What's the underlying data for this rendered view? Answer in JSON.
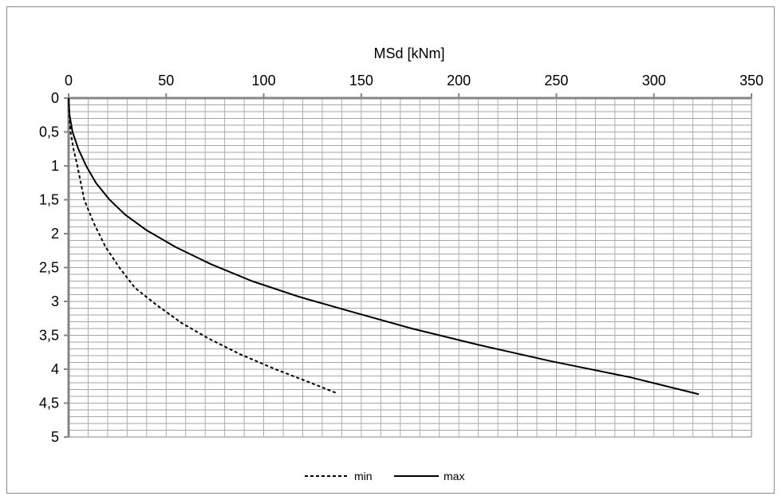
{
  "chart_data": {
    "type": "line",
    "xlabel": "MSd [kNm]",
    "ylabel": "",
    "xlim": [
      0,
      350
    ],
    "ylim": [
      0,
      5
    ],
    "y_reversed": true,
    "x_axis_position": "top",
    "x_ticks": [
      "0",
      "50",
      "100",
      "150",
      "200",
      "250",
      "300",
      "350"
    ],
    "y_ticks": [
      "0",
      "0,5",
      "1",
      "1,5",
      "2",
      "2,5",
      "3",
      "3,5",
      "4",
      "4,5",
      "5"
    ],
    "grid": true,
    "legend_position": "bottom",
    "series": [
      {
        "name": "min",
        "style": "dashed",
        "points": [
          [
            0,
            0
          ],
          [
            0.3,
            0.25
          ],
          [
            1,
            0.5
          ],
          [
            2.5,
            0.75
          ],
          [
            4.5,
            1.0
          ],
          [
            8,
            1.5
          ],
          [
            13,
            1.85
          ],
          [
            19,
            2.2
          ],
          [
            26,
            2.5
          ],
          [
            34,
            2.8
          ],
          [
            45,
            3.05
          ],
          [
            58,
            3.32
          ],
          [
            72,
            3.55
          ],
          [
            88,
            3.78
          ],
          [
            106,
            4.0
          ],
          [
            124,
            4.2
          ],
          [
            138,
            4.36
          ]
        ]
      },
      {
        "name": "max",
        "style": "solid",
        "points": [
          [
            0,
            0
          ],
          [
            0.5,
            0.25
          ],
          [
            2,
            0.5
          ],
          [
            5,
            0.75
          ],
          [
            9,
            1.0
          ],
          [
            14,
            1.25
          ],
          [
            21,
            1.5
          ],
          [
            29,
            1.72
          ],
          [
            40,
            1.95
          ],
          [
            55,
            2.2
          ],
          [
            73,
            2.45
          ],
          [
            94,
            2.7
          ],
          [
            118,
            2.93
          ],
          [
            146,
            3.16
          ],
          [
            176,
            3.4
          ],
          [
            210,
            3.64
          ],
          [
            247,
            3.88
          ],
          [
            288,
            4.12
          ],
          [
            323,
            4.37
          ]
        ]
      }
    ]
  }
}
